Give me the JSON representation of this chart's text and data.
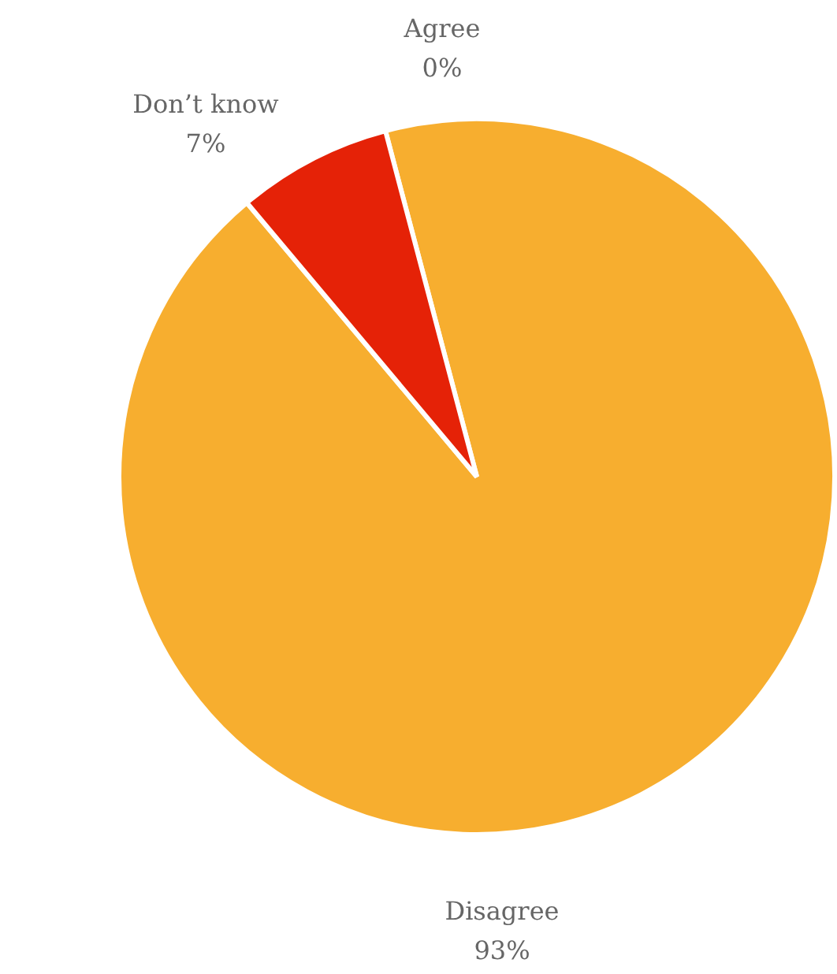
{
  "chart_data": {
    "type": "pie",
    "categories": [
      "Agree",
      "Disagree",
      "Don’t know"
    ],
    "values": [
      0,
      93,
      7
    ],
    "colors": [
      "#f7ae2f",
      "#f7ae2f",
      "#e52207"
    ],
    "value_labels": [
      "0%",
      "93%",
      "7%"
    ]
  }
}
